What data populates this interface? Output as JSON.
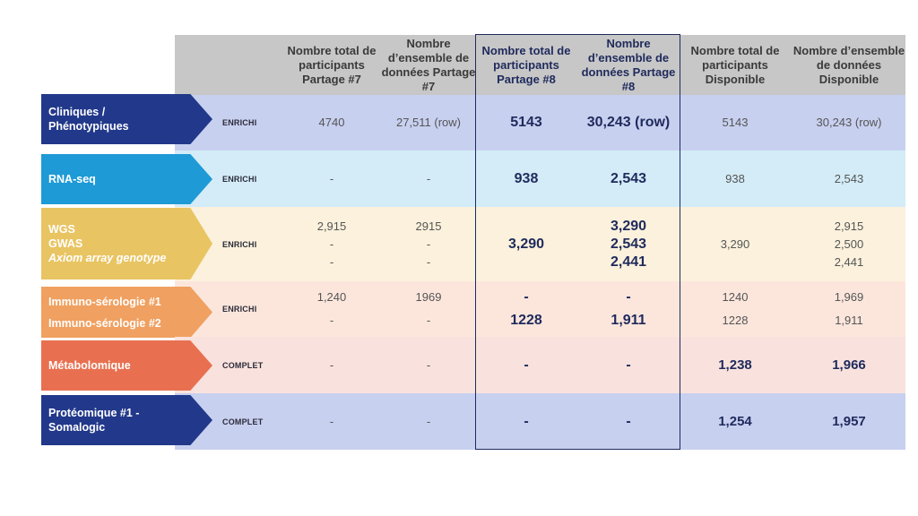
{
  "colors": {
    "header_bg": "#c7c7c7",
    "frame": "#1f2a5c",
    "rows": [
      "#c8d0f0",
      "#d3ecf8",
      "#fbf1dc",
      "#fce6dc",
      "#f9e2dd",
      "#c8d0f0"
    ],
    "arrows": [
      "#22388a",
      "#1e9ad6",
      "#e9c462",
      "#f0a060",
      "#e87050",
      "#22388a"
    ]
  },
  "headers": [
    "Nombre total de participants Partage #7",
    "Nombre d’ensemble de données Partage #7",
    "Nombre total de participants Partage #8",
    "Nombre d’ensemble de données Partage #8",
    "Nombre total de participants Disponible",
    "Nombre d’ensemble de données Disponible"
  ],
  "rows": [
    {
      "label": [
        "Cliniques / Phénotypiques"
      ],
      "status": "ENRICHI",
      "cells": [
        [
          "4740"
        ],
        [
          "27,511 (row)"
        ],
        [
          "5143"
        ],
        [
          "30,243 (row)"
        ],
        [
          "5143"
        ],
        [
          "30,243 (row)"
        ]
      ]
    },
    {
      "label": [
        "RNA-seq"
      ],
      "status": "ENRICHI",
      "cells": [
        [
          "-"
        ],
        [
          "-"
        ],
        [
          "938"
        ],
        [
          "2,543"
        ],
        [
          "938"
        ],
        [
          "2,543"
        ]
      ]
    },
    {
      "label": [
        "WGS",
        "GWAS",
        "Axiom array genotype"
      ],
      "status": "ENRICHI",
      "cells": [
        [
          "2,915",
          "-",
          "-"
        ],
        [
          "2915",
          "-",
          "-"
        ],
        [
          "3,290"
        ],
        [
          "3,290",
          "2,543",
          "2,441"
        ],
        [
          "3,290"
        ],
        [
          "2,915",
          "2,500",
          "2,441"
        ]
      ]
    },
    {
      "label": [
        "Immuno-sérologie #1",
        "Immuno-sérologie #2"
      ],
      "status": "ENRICHI",
      "cells": [
        [
          "1,240",
          "-"
        ],
        [
          "1969",
          "-"
        ],
        [
          "-",
          "1228"
        ],
        [
          "-",
          "1,911"
        ],
        [
          "1240",
          "1228"
        ],
        [
          "1,969",
          "1,911"
        ]
      ]
    },
    {
      "label": [
        "Métabolomique"
      ],
      "status": "COMPLET",
      "cells": [
        [
          "-"
        ],
        [
          "-"
        ],
        [
          "-"
        ],
        [
          "-"
        ],
        [
          "1,238"
        ],
        [
          "1,966"
        ]
      ]
    },
    {
      "label": [
        "Protéomique #1 - Somalogic"
      ],
      "status": "COMPLET",
      "cells": [
        [
          "-"
        ],
        [
          "-"
        ],
        [
          "-"
        ],
        [
          "-"
        ],
        [
          "1,254"
        ],
        [
          "1,957"
        ]
      ]
    }
  ]
}
